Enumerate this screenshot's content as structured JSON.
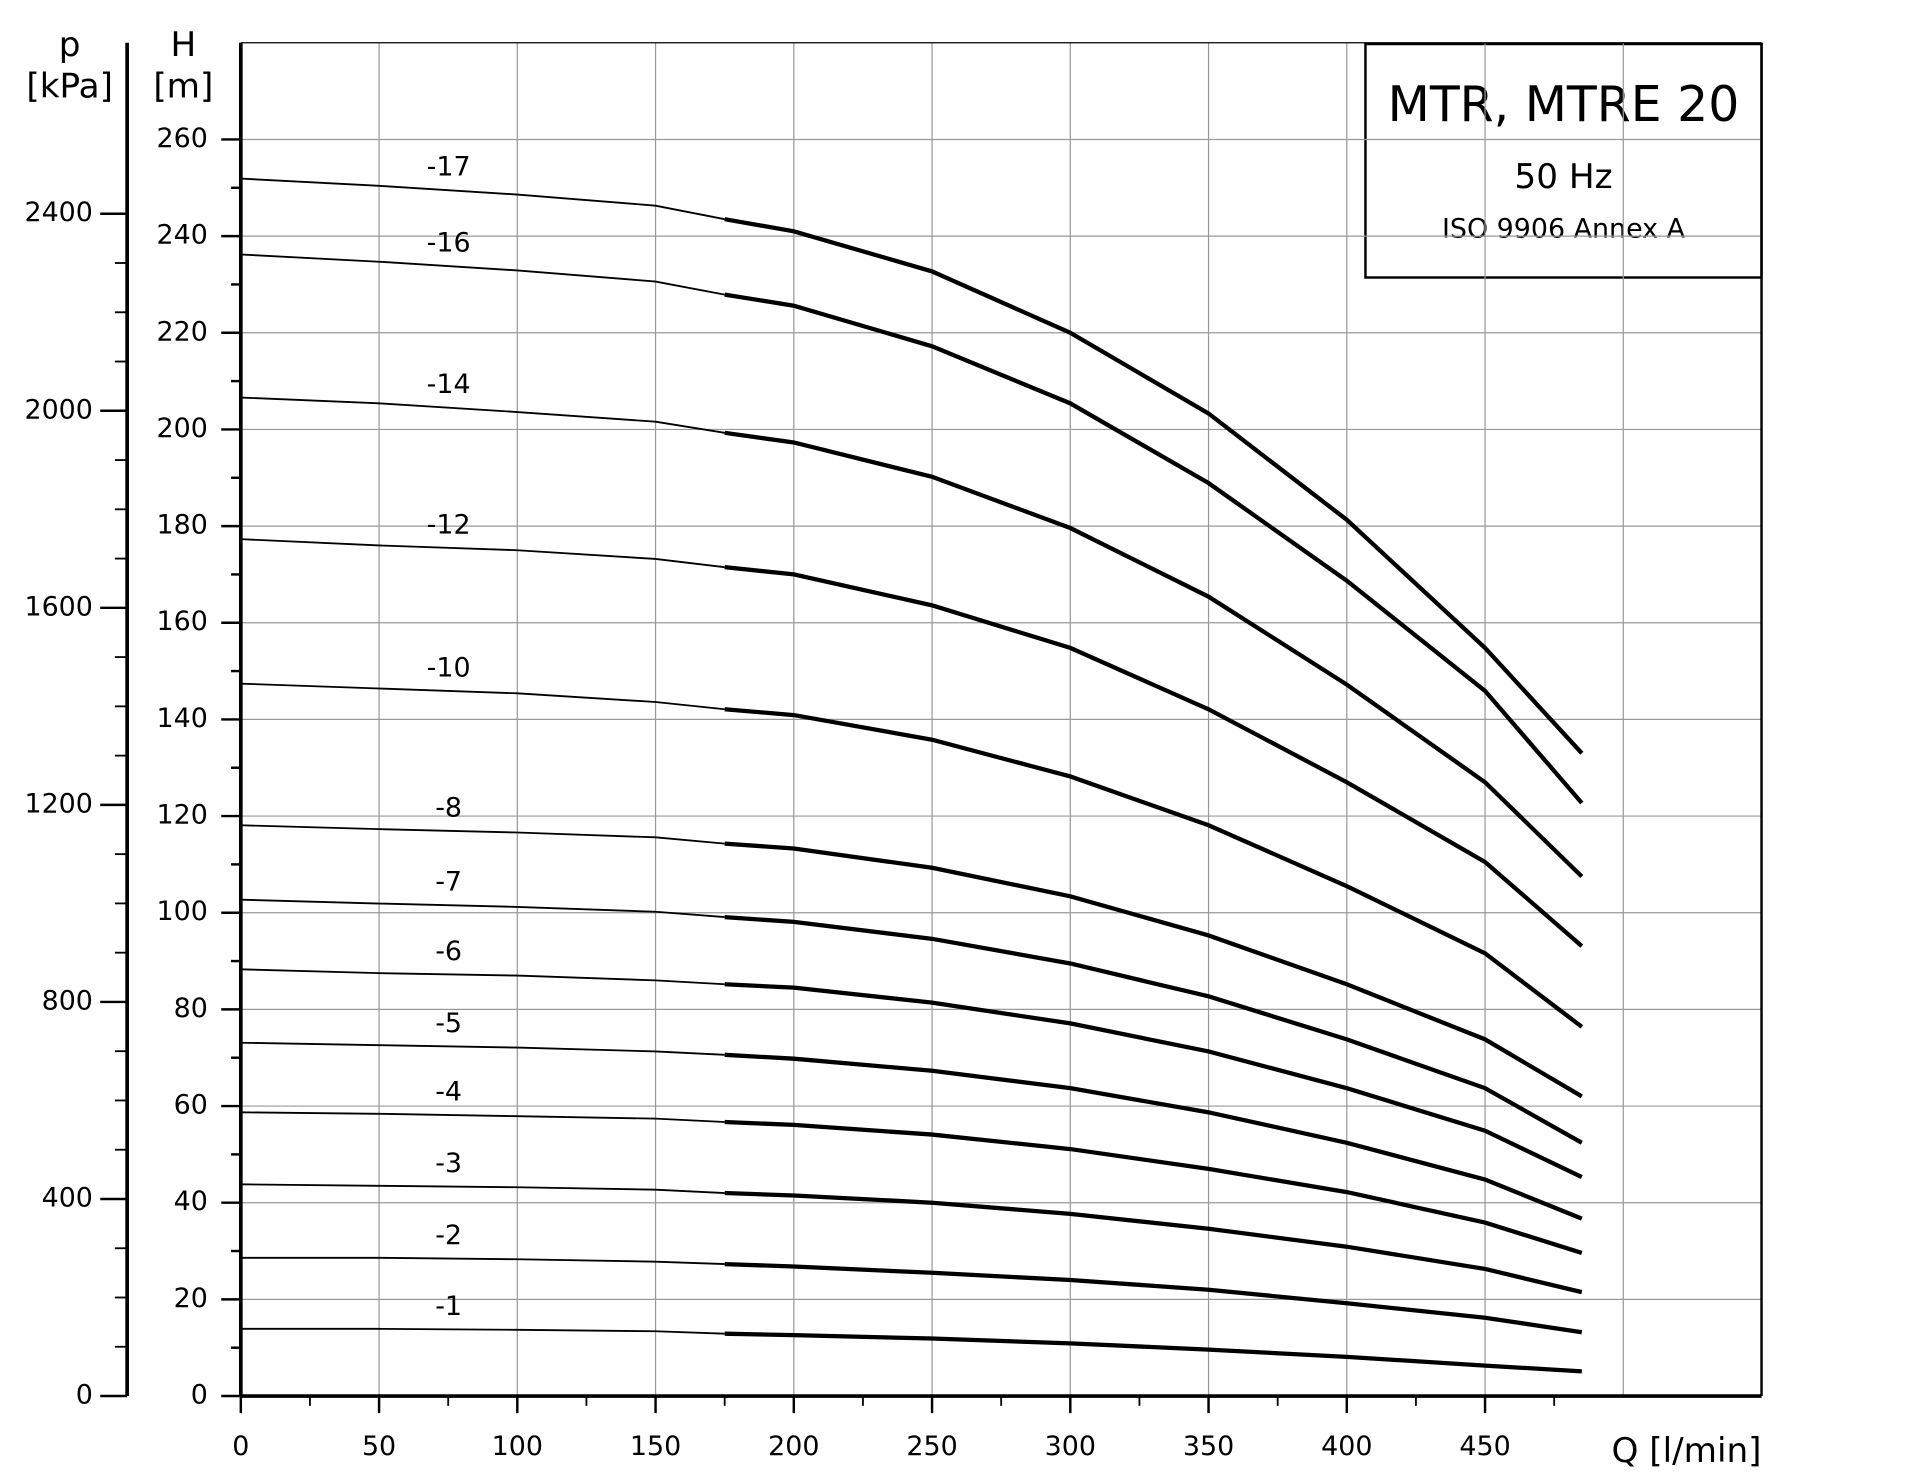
{
  "chart_data": {
    "type": "line",
    "title": "MTR, MTRE 20",
    "subtitle": "50 Hz",
    "note": "ISO 9906 Annex A",
    "y_label": [
      "H",
      "[m]"
    ],
    "y2_label": [
      "p",
      "[kPa]"
    ],
    "x_label": "Q [l/min]",
    "xlim": [
      0,
      550
    ],
    "xticks": [
      0,
      50,
      100,
      150,
      200,
      250,
      300,
      350,
      400,
      450
    ],
    "xgrid": [
      50,
      100,
      150,
      200,
      250,
      300,
      350,
      400,
      450,
      500
    ],
    "ylim": [
      0,
      280
    ],
    "yticks": [
      0,
      20,
      40,
      60,
      80,
      100,
      120,
      140,
      160,
      180,
      200,
      220,
      240,
      260
    ],
    "y2lim": [
      0,
      2747
    ],
    "y2ticks": [
      0,
      400,
      800,
      1200,
      1600,
      2000,
      2400
    ],
    "grid": true,
    "x": [
      0,
      50,
      100,
      150,
      175,
      200,
      250,
      300,
      350,
      400,
      450,
      485
    ],
    "series": [
      {
        "name": "-17",
        "color": "#000000",
        "values": [
          251.9,
          250.4,
          248.6,
          246.3,
          243.5,
          241.0,
          232.7,
          220.0,
          203.3,
          181.3,
          154.8,
          133.0
        ]
      },
      {
        "name": "-16",
        "color": "#000000",
        "values": [
          236.2,
          234.7,
          232.9,
          230.6,
          227.9,
          225.6,
          217.2,
          205.4,
          188.9,
          168.7,
          145.9,
          122.7
        ]
      },
      {
        "name": "-14",
        "color": "#000000",
        "values": [
          206.6,
          205.4,
          203.6,
          201.6,
          199.3,
          197.3,
          190.2,
          179.6,
          165.4,
          147.2,
          127.0,
          107.5
        ]
      },
      {
        "name": "-12",
        "color": "#000000",
        "values": [
          177.3,
          176.0,
          175.0,
          173.2,
          171.5,
          170.0,
          163.6,
          154.8,
          142.1,
          127.0,
          110.5,
          93.1
        ]
      },
      {
        "name": "-10",
        "color": "#000000",
        "values": [
          147.4,
          146.4,
          145.4,
          143.6,
          142.1,
          140.9,
          135.8,
          128.2,
          118.1,
          105.5,
          91.6,
          76.4
        ]
      },
      {
        "name": "-8",
        "color": "#000000",
        "values": [
          118.1,
          117.3,
          116.6,
          115.6,
          114.3,
          113.3,
          109.3,
          103.4,
          95.3,
          85.2,
          73.8,
          62.0
        ]
      },
      {
        "name": "-7",
        "color": "#000000",
        "values": [
          102.7,
          101.9,
          101.2,
          100.2,
          99.1,
          98.1,
          94.6,
          89.5,
          82.7,
          73.8,
          63.7,
          52.4
        ]
      },
      {
        "name": "-6",
        "color": "#000000",
        "values": [
          88.3,
          87.5,
          87.0,
          86.0,
          85.2,
          84.5,
          81.4,
          77.1,
          71.3,
          63.7,
          54.9,
          45.3
        ]
      },
      {
        "name": "-5",
        "color": "#000000",
        "values": [
          73.1,
          72.6,
          72.1,
          71.3,
          70.6,
          69.8,
          67.3,
          63.7,
          58.7,
          52.4,
          44.8,
          36.7
        ]
      },
      {
        "name": "-4",
        "color": "#000000",
        "values": [
          58.7,
          58.4,
          57.9,
          57.4,
          56.7,
          56.1,
          54.1,
          51.1,
          47.0,
          42.2,
          35.9,
          29.6
        ]
      },
      {
        "name": "-3",
        "color": "#000000",
        "values": [
          43.8,
          43.5,
          43.2,
          42.7,
          42.0,
          41.5,
          40.0,
          37.7,
          34.6,
          30.9,
          26.3,
          21.5
        ]
      },
      {
        "name": "-2",
        "color": "#000000",
        "values": [
          28.6,
          28.6,
          28.3,
          27.8,
          27.3,
          26.8,
          25.5,
          24.0,
          22.0,
          19.2,
          16.2,
          13.2
        ]
      },
      {
        "name": "-1",
        "color": "#000000",
        "values": [
          13.9,
          13.9,
          13.7,
          13.4,
          12.9,
          12.6,
          11.9,
          10.9,
          9.6,
          8.1,
          6.3,
          5.1
        ]
      }
    ]
  }
}
